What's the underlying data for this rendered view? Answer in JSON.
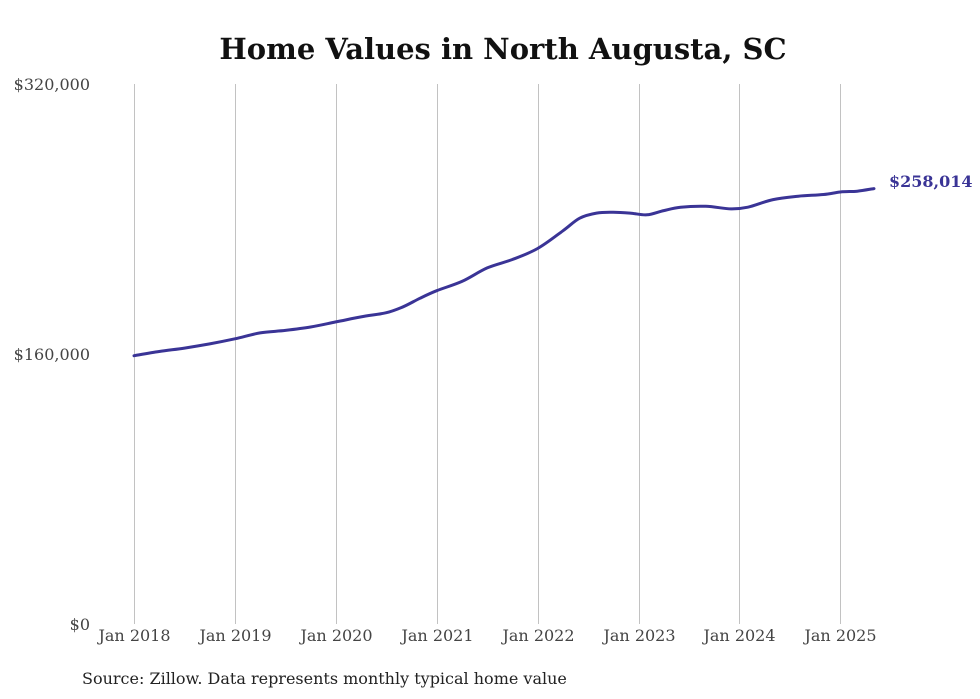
{
  "chart_data": {
    "type": "line",
    "title": "Home Values in North Augusta, SC",
    "xlabel": "",
    "ylabel": "",
    "ylim": [
      0,
      320000
    ],
    "xlim": [
      "2018-01",
      "2025-05"
    ],
    "grid": "vertical",
    "yticks": [
      {
        "value": 0,
        "label": "$0"
      },
      {
        "value": 160000,
        "label": "$160,000"
      },
      {
        "value": 320000,
        "label": "$320,000"
      }
    ],
    "xticks": [
      {
        "value": "2018-01",
        "label": "Jan 2018"
      },
      {
        "value": "2019-01",
        "label": "Jan 2019"
      },
      {
        "value": "2020-01",
        "label": "Jan 2020"
      },
      {
        "value": "2021-01",
        "label": "Jan 2021"
      },
      {
        "value": "2022-01",
        "label": "Jan 2022"
      },
      {
        "value": "2023-01",
        "label": "Jan 2023"
      },
      {
        "value": "2024-01",
        "label": "Jan 2024"
      },
      {
        "value": "2025-01",
        "label": "Jan 2025"
      }
    ],
    "series": [
      {
        "color": "#3a3496",
        "points": [
          {
            "x": "2018-01",
            "y": 159000
          },
          {
            "x": "2018-04",
            "y": 161500
          },
          {
            "x": "2018-07",
            "y": 163500
          },
          {
            "x": "2018-10",
            "y": 166000
          },
          {
            "x": "2019-01",
            "y": 169000
          },
          {
            "x": "2019-04",
            "y": 172500
          },
          {
            "x": "2019-07",
            "y": 174000
          },
          {
            "x": "2019-10",
            "y": 176000
          },
          {
            "x": "2020-01",
            "y": 179000
          },
          {
            "x": "2020-04",
            "y": 182000
          },
          {
            "x": "2020-07",
            "y": 184500
          },
          {
            "x": "2020-09",
            "y": 188000
          },
          {
            "x": "2020-11",
            "y": 193000
          },
          {
            "x": "2021-01",
            "y": 197500
          },
          {
            "x": "2021-04",
            "y": 203000
          },
          {
            "x": "2021-07",
            "y": 211000
          },
          {
            "x": "2021-10",
            "y": 216000
          },
          {
            "x": "2022-01",
            "y": 222500
          },
          {
            "x": "2022-04",
            "y": 233000
          },
          {
            "x": "2022-06",
            "y": 240500
          },
          {
            "x": "2022-08",
            "y": 243500
          },
          {
            "x": "2022-10",
            "y": 244000
          },
          {
            "x": "2022-12",
            "y": 243500
          },
          {
            "x": "2023-02",
            "y": 242500
          },
          {
            "x": "2023-04",
            "y": 245000
          },
          {
            "x": "2023-06",
            "y": 247000
          },
          {
            "x": "2023-09",
            "y": 247500
          },
          {
            "x": "2023-12",
            "y": 246000
          },
          {
            "x": "2024-02",
            "y": 247000
          },
          {
            "x": "2024-05",
            "y": 251500
          },
          {
            "x": "2024-08",
            "y": 253500
          },
          {
            "x": "2024-11",
            "y": 254500
          },
          {
            "x": "2025-01",
            "y": 256000
          },
          {
            "x": "2025-03",
            "y": 256500
          },
          {
            "x": "2025-05",
            "y": 258014
          }
        ]
      }
    ],
    "end_label": "$258,014",
    "source": "Source: Zillow. Data represents monthly typical home value"
  }
}
